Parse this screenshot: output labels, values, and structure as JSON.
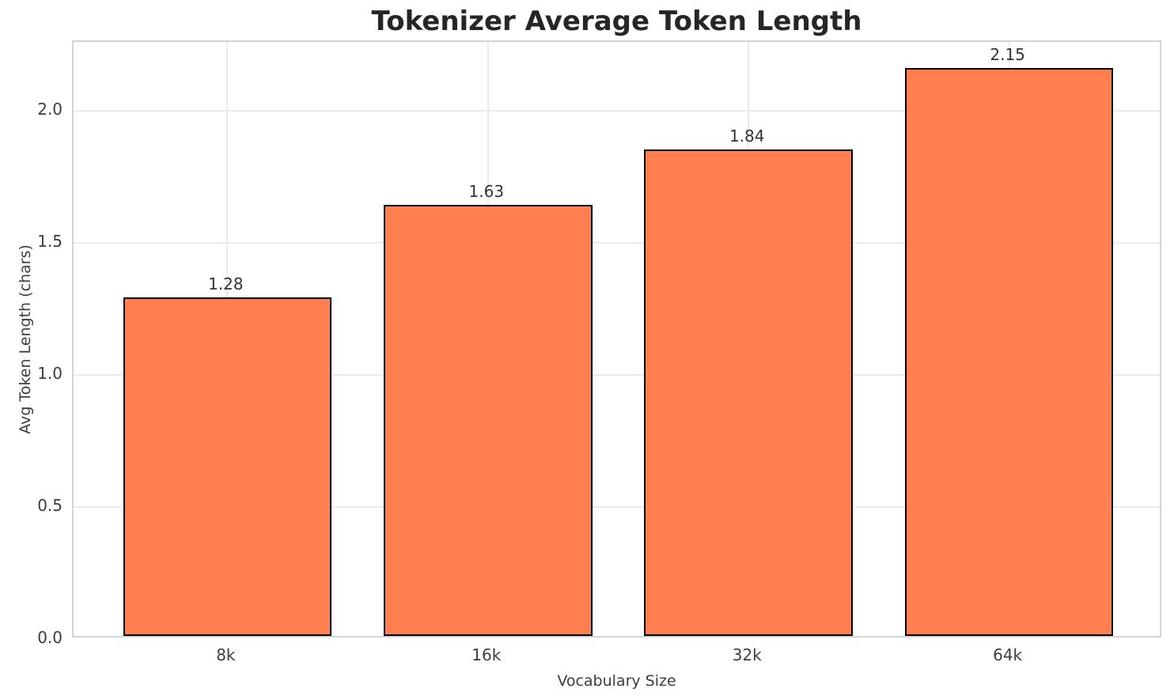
{
  "chart_data": {
    "type": "bar",
    "title": "Tokenizer Average Token Length",
    "xlabel": "Vocabulary Size",
    "ylabel": "Avg Token Length (chars)",
    "categories": [
      "8k",
      "16k",
      "32k",
      "64k"
    ],
    "values": [
      1.28,
      1.63,
      1.84,
      2.15
    ],
    "value_labels": [
      "1.28",
      "1.63",
      "1.84",
      "2.15"
    ],
    "yticks": [
      0.0,
      0.5,
      1.0,
      1.5,
      2.0
    ],
    "ytick_labels": [
      "0.0",
      "0.5",
      "1.0",
      "1.5",
      "2.0"
    ],
    "ylim": [
      0,
      2.26
    ],
    "grid": true,
    "legend": null,
    "bar_width_fraction": 0.8,
    "x_margin_slots": 0.59,
    "colors": {
      "bar_fill": "#FF7F50",
      "bar_edge": "#000000",
      "grid_line": "#EBEBEB",
      "spine": "#D4D4D4",
      "title_text": "#262626",
      "label_text": "#3D3D3D",
      "background": "#FFFFFF"
    }
  }
}
